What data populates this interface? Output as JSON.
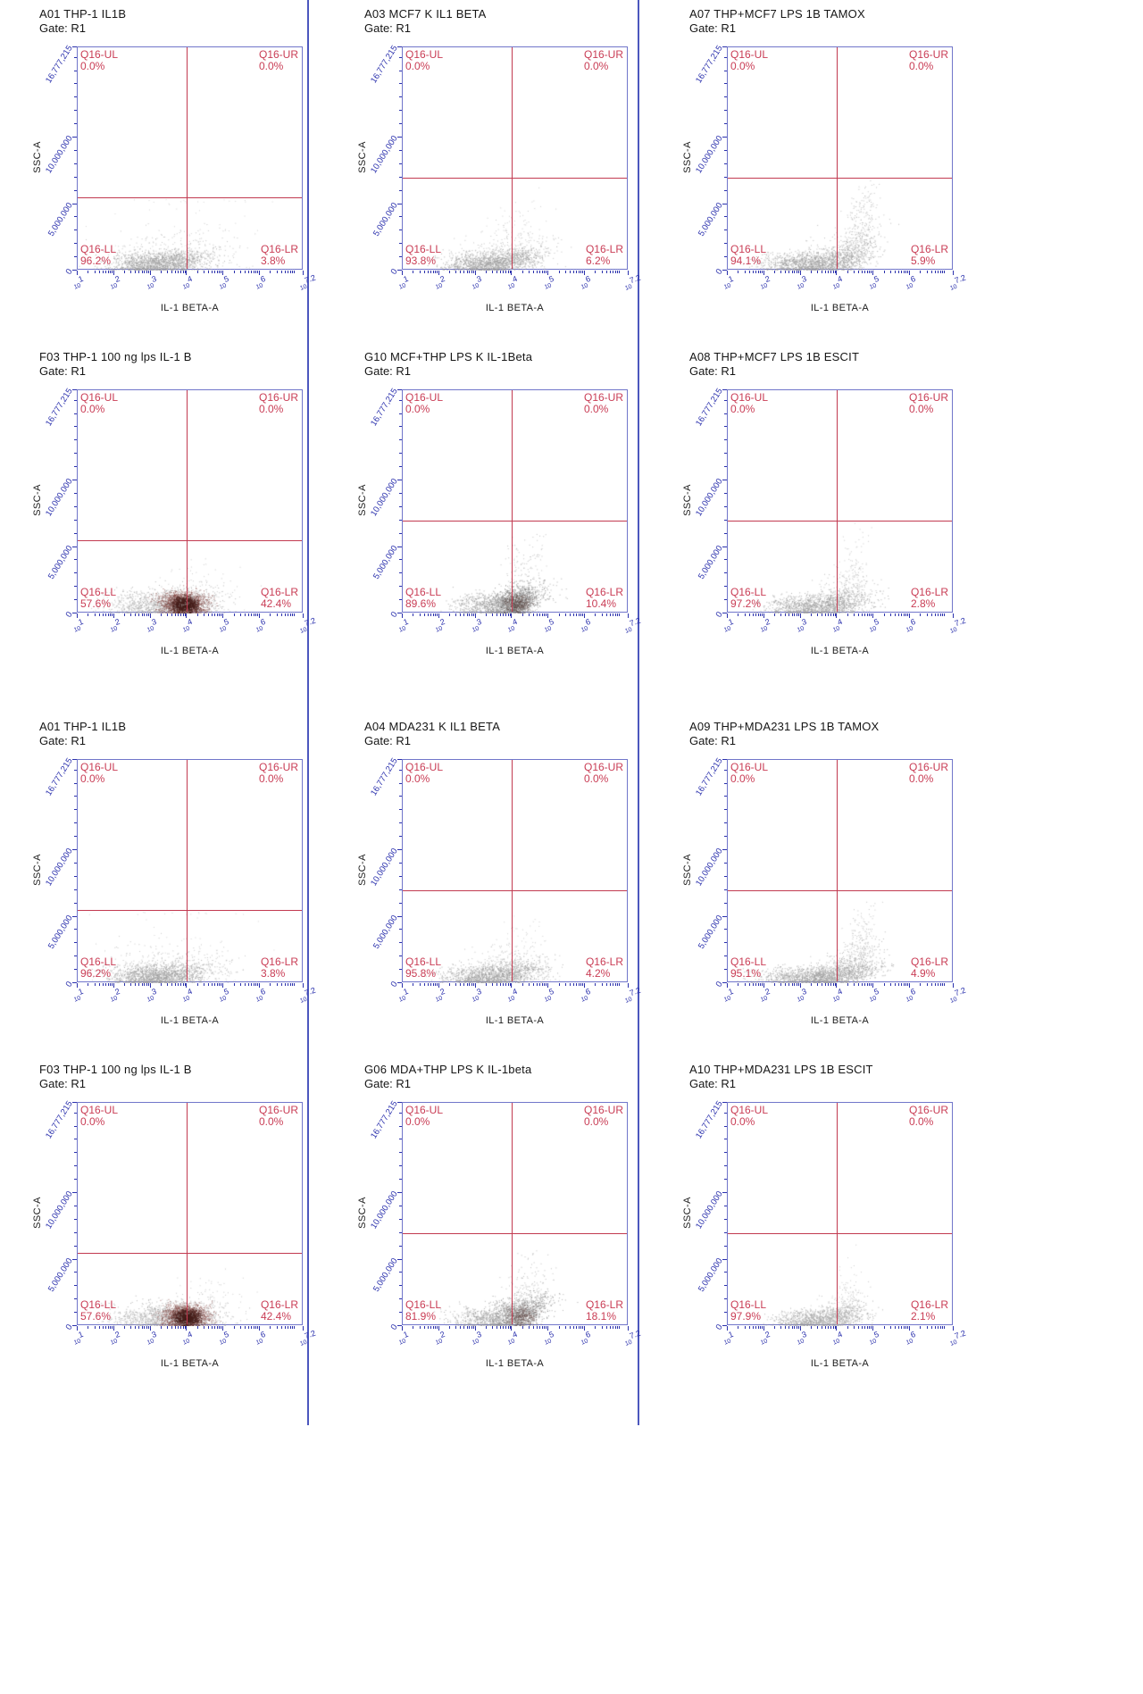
{
  "page": {
    "colors": {
      "quadrant_red": "#c93d55",
      "gate_line_red": "#c23a50",
      "axis_blue": "#2b31ad",
      "frame_blue": "#7176ca",
      "divider_blue": "#4c57be",
      "text_dark": "#161616"
    }
  },
  "axes": {
    "x_tick_base": "10",
    "x_range": [
      1,
      7.2
    ],
    "x_scale": "log10",
    "x_ticks": [
      {
        "exp": "1",
        "pos": 1
      },
      {
        "exp": "2",
        "pos": 2
      },
      {
        "exp": "3",
        "pos": 3
      },
      {
        "exp": "4",
        "pos": 4
      },
      {
        "exp": "5",
        "pos": 5
      },
      {
        "exp": "6",
        "pos": 6
      },
      {
        "exp": "7.2",
        "pos": 7.2
      }
    ],
    "y_max": 16777215,
    "y_ticks": [
      {
        "label": "0",
        "value": 0
      },
      {
        "label": "5,000,000",
        "value": 5000000
      },
      {
        "label": "10,000,000",
        "value": 10000000
      },
      {
        "label": "16,777,215",
        "value": 16777215
      }
    ]
  },
  "chart_data": [
    {
      "type": "scatter",
      "row": 0,
      "col": 0,
      "title": "A01 THP-1  IL1B",
      "gate_label": "Gate: R1",
      "xlabel": "IL-1 BETA-A",
      "ylabel": "SSC-A",
      "gate_x_log10": 4.0,
      "gate_y": 5500000,
      "ylim": [
        0,
        16777215
      ],
      "quadrants": [
        {
          "name": "Q16-UL",
          "pct": "0.0%"
        },
        {
          "name": "Q16-UR",
          "pct": "0.0%"
        },
        {
          "name": "Q16-LL",
          "pct": "96.2%"
        },
        {
          "name": "Q16-LR",
          "pct": "3.8%"
        }
      ],
      "clusters": [
        {
          "cx": 0.36,
          "cy": 0.03,
          "sx": 0.105,
          "sy": 0.026,
          "n": 1500,
          "color": "#9c9c9c",
          "corr": 0.12
        },
        {
          "cx": 0.43,
          "cy": 0.075,
          "sx": 0.15,
          "sy": 0.055,
          "n": 320,
          "color": "#b8b8b8",
          "corr": 0
        },
        {
          "cx": 0.5,
          "cy": 0.24,
          "sx": 0.17,
          "sy": 0.14,
          "n": 45,
          "color": "#c9c9c9",
          "corr": 0
        }
      ]
    },
    {
      "type": "scatter",
      "row": 0,
      "col": 1,
      "title": "A03 MCF7 K IL1 BETA",
      "gate_label": "Gate: R1",
      "xlabel": "IL-1 BETA-A",
      "ylabel": "SSC-A",
      "gate_x_log10": 4.0,
      "gate_y": 7000000,
      "ylim": [
        0,
        16777215
      ],
      "quadrants": [
        {
          "name": "Q16-UL",
          "pct": "0.0%"
        },
        {
          "name": "Q16-UR",
          "pct": "0.0%"
        },
        {
          "name": "Q16-LL",
          "pct": "93.8%"
        },
        {
          "name": "Q16-LR",
          "pct": "6.2%"
        }
      ],
      "clusters": [
        {
          "cx": 0.4,
          "cy": 0.03,
          "sx": 0.1,
          "sy": 0.026,
          "n": 1400,
          "color": "#9c9c9c",
          "corr": 0.18
        },
        {
          "cx": 0.46,
          "cy": 0.08,
          "sx": 0.12,
          "sy": 0.05,
          "n": 300,
          "color": "#b5b5b5",
          "corr": 0
        },
        {
          "cx": 0.5,
          "cy": 0.17,
          "sx": 0.06,
          "sy": 0.07,
          "n": 90,
          "color": "#c2c2c2",
          "corr": 0.5
        }
      ]
    },
    {
      "type": "scatter",
      "row": 0,
      "col": 2,
      "title": "A07 THP+MCF7 LPS 1B TAMOX",
      "gate_label": "Gate: R1",
      "xlabel": "IL-1 BETA-A",
      "ylabel": "SSC-A",
      "gate_x_log10": 4.0,
      "gate_y": 7000000,
      "ylim": [
        0,
        16777215
      ],
      "quadrants": [
        {
          "name": "Q16-UL",
          "pct": "0.0%"
        },
        {
          "name": "Q16-UR",
          "pct": "0.0%"
        },
        {
          "name": "Q16-LL",
          "pct": "94.1%"
        },
        {
          "name": "Q16-LR",
          "pct": "5.9%"
        }
      ],
      "clusters": [
        {
          "cx": 0.38,
          "cy": 0.03,
          "sx": 0.115,
          "sy": 0.026,
          "n": 1400,
          "color": "#9c9c9c",
          "corr": 0.15
        },
        {
          "cx": 0.52,
          "cy": 0.06,
          "sx": 0.08,
          "sy": 0.05,
          "n": 420,
          "color": "#a8a8a8",
          "corr": 0.6
        },
        {
          "cx": 0.585,
          "cy": 0.16,
          "sx": 0.035,
          "sy": 0.1,
          "n": 260,
          "color": "#b3b3b3",
          "corr": 1.1
        }
      ]
    },
    {
      "type": "scatter",
      "row": 1,
      "col": 0,
      "title": "F03 THP-1 100 ng lps IL-1 B",
      "gate_label": "Gate: R1",
      "xlabel": "IL-1 BETA-A",
      "ylabel": "SSC-A",
      "gate_x_log10": 4.0,
      "gate_y": 5500000,
      "ylim": [
        0,
        16777215
      ],
      "quadrants": [
        {
          "name": "Q16-UL",
          "pct": "0.0%"
        },
        {
          "name": "Q16-UR",
          "pct": "0.0%"
        },
        {
          "name": "Q16-LL",
          "pct": "57.6%"
        },
        {
          "name": "Q16-LR",
          "pct": "42.4%"
        }
      ],
      "clusters": [
        {
          "cx": 0.4,
          "cy": 0.045,
          "sx": 0.115,
          "sy": 0.035,
          "n": 900,
          "color": "#a3a3a3",
          "corr": 0
        },
        {
          "cx": 0.465,
          "cy": 0.045,
          "sx": 0.05,
          "sy": 0.026,
          "n": 1700,
          "color": "#8a5350",
          "corr": 0
        },
        {
          "cx": 0.472,
          "cy": 0.04,
          "sx": 0.027,
          "sy": 0.016,
          "n": 1300,
          "color": "#46201c",
          "corr": 0
        },
        {
          "cx": 0.3,
          "cy": 0.03,
          "sx": 0.09,
          "sy": 0.02,
          "n": 260,
          "color": "#b5b5b5",
          "corr": 0
        },
        {
          "cx": 0.56,
          "cy": 0.09,
          "sx": 0.09,
          "sy": 0.06,
          "n": 130,
          "color": "#bdbdbd",
          "corr": 0
        }
      ]
    },
    {
      "type": "scatter",
      "row": 1,
      "col": 1,
      "title": "G10 MCF+THP LPS K IL-1Beta",
      "gate_label": "Gate: R1",
      "xlabel": "IL-1 BETA-A",
      "ylabel": "SSC-A",
      "gate_x_log10": 4.0,
      "gate_y": 7000000,
      "ylim": [
        0,
        16777215
      ],
      "quadrants": [
        {
          "name": "Q16-UL",
          "pct": "0.0%"
        },
        {
          "name": "Q16-UR",
          "pct": "0.0%"
        },
        {
          "name": "Q16-LL",
          "pct": "89.6%"
        },
        {
          "name": "Q16-LR",
          "pct": "10.4%"
        }
      ],
      "clusters": [
        {
          "cx": 0.43,
          "cy": 0.035,
          "sx": 0.1,
          "sy": 0.028,
          "n": 1200,
          "color": "#9c9c9c",
          "corr": 0.25
        },
        {
          "cx": 0.5,
          "cy": 0.05,
          "sx": 0.05,
          "sy": 0.035,
          "n": 700,
          "color": "#7e7e7e",
          "corr": 0.4
        },
        {
          "cx": 0.505,
          "cy": 0.045,
          "sx": 0.028,
          "sy": 0.02,
          "n": 350,
          "color": "#5d4a47",
          "corr": 0
        },
        {
          "cx": 0.53,
          "cy": 0.14,
          "sx": 0.045,
          "sy": 0.09,
          "n": 160,
          "color": "#b3b3b3",
          "corr": 0.9
        }
      ]
    },
    {
      "type": "scatter",
      "row": 1,
      "col": 2,
      "title": "A08 THP+MCF7 LPS 1B ESCIT",
      "gate_label": "Gate: R1",
      "xlabel": "IL-1 BETA-A",
      "ylabel": "SSC-A",
      "gate_x_log10": 4.0,
      "gate_y": 7000000,
      "ylim": [
        0,
        16777215
      ],
      "quadrants": [
        {
          "name": "Q16-UL",
          "pct": "0.0%"
        },
        {
          "name": "Q16-UR",
          "pct": "0.0%"
        },
        {
          "name": "Q16-LL",
          "pct": "97.2%"
        },
        {
          "name": "Q16-LR",
          "pct": "2.8%"
        }
      ],
      "clusters": [
        {
          "cx": 0.4,
          "cy": 0.03,
          "sx": 0.115,
          "sy": 0.026,
          "n": 1300,
          "color": "#9e9e9e",
          "corr": 0.15
        },
        {
          "cx": 0.5,
          "cy": 0.06,
          "sx": 0.06,
          "sy": 0.05,
          "n": 300,
          "color": "#adadad",
          "corr": 0.7
        },
        {
          "cx": 0.545,
          "cy": 0.15,
          "sx": 0.035,
          "sy": 0.09,
          "n": 140,
          "color": "#bdbdbd",
          "corr": 1.0
        }
      ]
    },
    {
      "type": "scatter",
      "row": 2,
      "col": 0,
      "title": "A01 THP-1  IL1B",
      "gate_label": "Gate: R1",
      "xlabel": "IL-1 BETA-A",
      "ylabel": "SSC-A",
      "gate_x_log10": 4.0,
      "gate_y": 5500000,
      "ylim": [
        0,
        16777215
      ],
      "quadrants": [
        {
          "name": "Q16-UL",
          "pct": "0.0%"
        },
        {
          "name": "Q16-UR",
          "pct": "0.0%"
        },
        {
          "name": "Q16-LL",
          "pct": "96.2%"
        },
        {
          "name": "Q16-LR",
          "pct": "3.8%"
        }
      ],
      "clusters": [
        {
          "cx": 0.36,
          "cy": 0.03,
          "sx": 0.105,
          "sy": 0.026,
          "n": 1500,
          "color": "#9c9c9c",
          "corr": 0.12
        },
        {
          "cx": 0.43,
          "cy": 0.075,
          "sx": 0.15,
          "sy": 0.055,
          "n": 320,
          "color": "#b8b8b8",
          "corr": 0
        },
        {
          "cx": 0.5,
          "cy": 0.24,
          "sx": 0.17,
          "sy": 0.14,
          "n": 45,
          "color": "#c9c9c9",
          "corr": 0
        }
      ]
    },
    {
      "type": "scatter",
      "row": 2,
      "col": 1,
      "title": "A04 MDA231 K IL1 BETA",
      "gate_label": "Gate: R1",
      "xlabel": "IL-1 BETA-A",
      "ylabel": "SSC-A",
      "gate_x_log10": 4.0,
      "gate_y": 7000000,
      "ylim": [
        0,
        16777215
      ],
      "quadrants": [
        {
          "name": "Q16-UL",
          "pct": "0.0%"
        },
        {
          "name": "Q16-UR",
          "pct": "0.0%"
        },
        {
          "name": "Q16-LL",
          "pct": "95.8%"
        },
        {
          "name": "Q16-LR",
          "pct": "4.2%"
        }
      ],
      "clusters": [
        {
          "cx": 0.41,
          "cy": 0.03,
          "sx": 0.105,
          "sy": 0.026,
          "n": 1400,
          "color": "#9c9c9c",
          "corr": 0.15
        },
        {
          "cx": 0.47,
          "cy": 0.07,
          "sx": 0.1,
          "sy": 0.05,
          "n": 280,
          "color": "#b5b5b5",
          "corr": 0
        },
        {
          "cx": 0.51,
          "cy": 0.15,
          "sx": 0.05,
          "sy": 0.06,
          "n": 80,
          "color": "#c5c5c5",
          "corr": 0.5
        }
      ]
    },
    {
      "type": "scatter",
      "row": 2,
      "col": 2,
      "title": "A09 THP+MDA231 LPS 1B TAMOX",
      "gate_label": "Gate: R1",
      "xlabel": "IL-1 BETA-A",
      "ylabel": "SSC-A",
      "gate_x_log10": 4.0,
      "gate_y": 7000000,
      "ylim": [
        0,
        16777215
      ],
      "quadrants": [
        {
          "name": "Q16-UL",
          "pct": "0.0%"
        },
        {
          "name": "Q16-UR",
          "pct": "0.0%"
        },
        {
          "name": "Q16-LL",
          "pct": "95.1%"
        },
        {
          "name": "Q16-LR",
          "pct": "4.9%"
        }
      ],
      "clusters": [
        {
          "cx": 0.4,
          "cy": 0.028,
          "sx": 0.13,
          "sy": 0.024,
          "n": 1500,
          "color": "#9c9c9c",
          "corr": 0.15
        },
        {
          "cx": 0.53,
          "cy": 0.055,
          "sx": 0.07,
          "sy": 0.045,
          "n": 380,
          "color": "#a8a8a8",
          "corr": 0.6
        },
        {
          "cx": 0.585,
          "cy": 0.14,
          "sx": 0.035,
          "sy": 0.09,
          "n": 200,
          "color": "#b5b5b5",
          "corr": 1.0
        }
      ]
    },
    {
      "type": "scatter",
      "row": 3,
      "col": 0,
      "title": "F03 THP-1 100 ng lps IL-1 B",
      "gate_label": "Gate: R1",
      "xlabel": "IL-1 BETA-A",
      "ylabel": "SSC-A",
      "gate_x_log10": 4.0,
      "gate_y": 5500000,
      "ylim": [
        0,
        16777215
      ],
      "quadrants": [
        {
          "name": "Q16-UL",
          "pct": "0.0%"
        },
        {
          "name": "Q16-UR",
          "pct": "0.0%"
        },
        {
          "name": "Q16-LL",
          "pct": "57.6%"
        },
        {
          "name": "Q16-LR",
          "pct": "42.4%"
        }
      ],
      "clusters": [
        {
          "cx": 0.41,
          "cy": 0.045,
          "sx": 0.115,
          "sy": 0.035,
          "n": 900,
          "color": "#a3a3a3",
          "corr": 0
        },
        {
          "cx": 0.475,
          "cy": 0.045,
          "sx": 0.05,
          "sy": 0.026,
          "n": 1700,
          "color": "#8a5350",
          "corr": 0
        },
        {
          "cx": 0.482,
          "cy": 0.04,
          "sx": 0.027,
          "sy": 0.016,
          "n": 1300,
          "color": "#46201c",
          "corr": 0
        },
        {
          "cx": 0.31,
          "cy": 0.03,
          "sx": 0.09,
          "sy": 0.02,
          "n": 260,
          "color": "#b5b5b5",
          "corr": 0
        },
        {
          "cx": 0.57,
          "cy": 0.09,
          "sx": 0.09,
          "sy": 0.06,
          "n": 130,
          "color": "#bdbdbd",
          "corr": 0
        }
      ]
    },
    {
      "type": "scatter",
      "row": 3,
      "col": 1,
      "title": "G06 MDA+THP LPS K IL-1beta",
      "gate_label": "Gate: R1",
      "xlabel": "IL-1 BETA-A",
      "ylabel": "SSC-A",
      "gate_x_log10": 4.0,
      "gate_y": 7000000,
      "ylim": [
        0,
        16777215
      ],
      "quadrants": [
        {
          "name": "Q16-UL",
          "pct": "0.0%"
        },
        {
          "name": "Q16-UR",
          "pct": "0.0%"
        },
        {
          "name": "Q16-LL",
          "pct": "81.9%"
        },
        {
          "name": "Q16-LR",
          "pct": "18.1%"
        }
      ],
      "clusters": [
        {
          "cx": 0.44,
          "cy": 0.035,
          "sx": 0.11,
          "sy": 0.03,
          "n": 1100,
          "color": "#9c9c9c",
          "corr": 0.3
        },
        {
          "cx": 0.52,
          "cy": 0.05,
          "sx": 0.06,
          "sy": 0.04,
          "n": 600,
          "color": "#858585",
          "corr": 0.5
        },
        {
          "cx": 0.525,
          "cy": 0.045,
          "sx": 0.03,
          "sy": 0.02,
          "n": 280,
          "color": "#6a5250",
          "corr": 0
        },
        {
          "cx": 0.55,
          "cy": 0.13,
          "sx": 0.05,
          "sy": 0.08,
          "n": 170,
          "color": "#b0b0b0",
          "corr": 0.8
        }
      ]
    },
    {
      "type": "scatter",
      "row": 3,
      "col": 2,
      "title": "A10 THP+MDA231 LPS 1B ESCIT",
      "gate_label": "Gate: R1",
      "xlabel": "IL-1 BETA-A",
      "ylabel": "SSC-A",
      "gate_x_log10": 4.0,
      "gate_y": 7000000,
      "ylim": [
        0,
        16777215
      ],
      "quadrants": [
        {
          "name": "Q16-UL",
          "pct": "0.0%"
        },
        {
          "name": "Q16-UR",
          "pct": "0.0%"
        },
        {
          "name": "Q16-LL",
          "pct": "97.9%"
        },
        {
          "name": "Q16-LR",
          "pct": "2.1%"
        }
      ],
      "clusters": [
        {
          "cx": 0.41,
          "cy": 0.028,
          "sx": 0.1,
          "sy": 0.024,
          "n": 1100,
          "color": "#a0a0a0",
          "corr": 0.15
        },
        {
          "cx": 0.49,
          "cy": 0.05,
          "sx": 0.05,
          "sy": 0.04,
          "n": 220,
          "color": "#b3b3b3",
          "corr": 0.5
        },
        {
          "cx": 0.52,
          "cy": 0.12,
          "sx": 0.03,
          "sy": 0.07,
          "n": 90,
          "color": "#c2c2c2",
          "corr": 0.8
        }
      ]
    }
  ]
}
